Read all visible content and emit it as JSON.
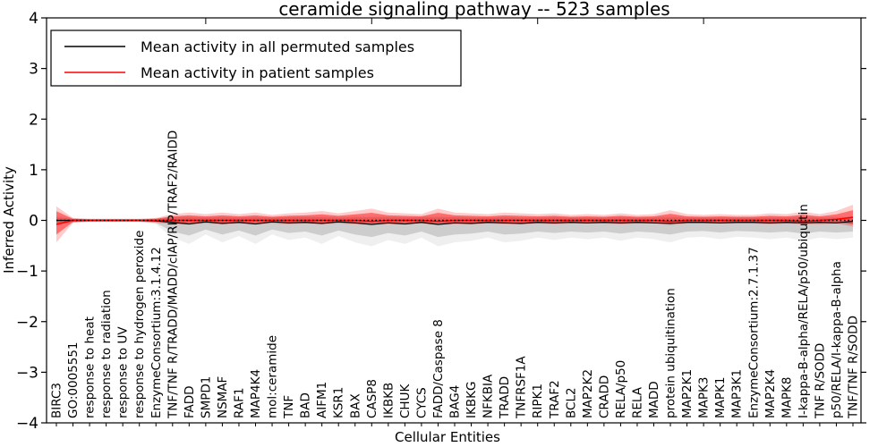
{
  "title": "ceramide signaling pathway -- 523 samples",
  "axes": {
    "ylabel": "Inferred Activity",
    "xlabel": "Cellular Entities"
  },
  "legend": {
    "position": "upper-left",
    "items": [
      {
        "label": "Mean activity in all permuted samples",
        "color": "#000000"
      },
      {
        "label": "Mean activity in patient samples",
        "color": "#ff0000"
      }
    ]
  },
  "chart_data": {
    "type": "line",
    "title": "ceramide signaling pathway -- 523 samples",
    "xlabel": "Cellular Entities",
    "ylabel": "Inferred Activity",
    "ylim": [
      -4,
      4
    ],
    "yticks": [
      4,
      3,
      2,
      1,
      0,
      -1,
      -2,
      -3,
      -4
    ],
    "grid": false,
    "x_tick_label_rotation_deg": 90,
    "categories": [
      "BIRC3",
      "GO:0005551",
      "response to heat",
      "response to radiation",
      "response to UV",
      "response to hydrogen peroxide",
      "EnzymeConsortium:3.1.4.12",
      "TNF/TNF R/TRADD/MADD/cIAP/RIP/TRAF2/RAIDD",
      "FADD",
      "SMPD1",
      "NSMAF",
      "RAF1",
      "MAP4K4",
      "mol:ceramide",
      "TNF",
      "BAD",
      "AIFM1",
      "KSR1",
      "BAX",
      "CASP8",
      "IKBKB",
      "CHUK",
      "CYCS",
      "FADD/Caspase 8",
      "BAG4",
      "IKBKG",
      "NFKBIA",
      "TRADD",
      "TNFRSF1A",
      "RIPK1",
      "TRAF2",
      "BCL2",
      "MAP2K2",
      "CRADD",
      "RELA/p50",
      "RELA",
      "MADD",
      "protein ubiquitination",
      "MAP2K1",
      "MAPK3",
      "MAPK1",
      "MAP3K1",
      "EnzymeConsortium:2.7.1.37",
      "MAP2K4",
      "MAPK8",
      "I-kappa-B-alpha/RELA/p50/ubiquitin",
      "TNF R/SODD",
      "p50/RELA/I-kappa-B-alpha",
      "TNF/TNF R/SODD"
    ],
    "series": [
      {
        "name": "Mean activity in all permuted samples",
        "color": "#000000",
        "style": "solid",
        "values": [
          0,
          0,
          0,
          0,
          0,
          0,
          -0.01,
          -0.04,
          -0.07,
          -0.03,
          -0.06,
          -0.04,
          -0.07,
          -0.03,
          -0.05,
          -0.04,
          -0.06,
          -0.03,
          -0.05,
          -0.08,
          -0.05,
          -0.07,
          -0.04,
          -0.08,
          -0.05,
          -0.06,
          -0.04,
          -0.05,
          -0.06,
          -0.04,
          -0.05,
          -0.04,
          -0.05,
          -0.04,
          -0.05,
          -0.04,
          -0.05,
          -0.06,
          -0.04,
          -0.04,
          -0.05,
          -0.04,
          -0.04,
          -0.05,
          -0.04,
          -0.05,
          -0.04,
          -0.05,
          -0.02
        ]
      },
      {
        "name": "Mean activity in patient samples",
        "color": "#ff0000",
        "style": "solid",
        "values": [
          -0.08,
          0,
          0,
          0,
          0,
          0,
          0,
          0,
          0,
          0,
          0,
          0,
          0,
          0,
          0,
          0,
          0,
          0,
          0,
          -0.02,
          0,
          0,
          0,
          -0.02,
          0,
          0,
          0,
          0,
          0,
          0,
          0,
          0,
          0,
          0,
          0,
          0,
          0,
          -0.02,
          0,
          0,
          0,
          0,
          0,
          0,
          0,
          -0.02,
          0,
          0.02,
          0.06
        ]
      }
    ],
    "reference_line": {
      "y": 0,
      "color": "#000000",
      "style": "dotted"
    },
    "bands": [
      {
        "name": "permuted-samples-range",
        "color": "#000000",
        "opacity": 0.14,
        "upper": [
          0.06,
          0.03,
          0.02,
          0.02,
          0.02,
          0.02,
          0.03,
          0.06,
          0.06,
          0.05,
          0.06,
          0.05,
          0.06,
          0.05,
          0.06,
          0.06,
          0.06,
          0.05,
          0.06,
          0.06,
          0.06,
          0.05,
          0.06,
          0.06,
          0.06,
          0.05,
          0.05,
          0.06,
          0.05,
          0.05,
          0.06,
          0.05,
          0.05,
          0.05,
          0.06,
          0.05,
          0.05,
          0.06,
          0.05,
          0.05,
          0.05,
          0.05,
          0.05,
          0.05,
          0.05,
          0.06,
          0.05,
          0.05,
          0.05
        ],
        "lower": [
          -0.06,
          -0.03,
          -0.02,
          -0.02,
          -0.02,
          -0.02,
          -0.05,
          -0.22,
          -0.3,
          -0.18,
          -0.28,
          -0.2,
          -0.3,
          -0.18,
          -0.25,
          -0.22,
          -0.3,
          -0.2,
          -0.28,
          -0.33,
          -0.25,
          -0.3,
          -0.22,
          -0.33,
          -0.28,
          -0.26,
          -0.22,
          -0.28,
          -0.26,
          -0.22,
          -0.25,
          -0.22,
          -0.24,
          -0.22,
          -0.26,
          -0.22,
          -0.24,
          -0.28,
          -0.22,
          -0.21,
          -0.24,
          -0.21,
          -0.22,
          -0.24,
          -0.22,
          -0.26,
          -0.22,
          -0.24,
          -0.22
        ]
      },
      {
        "name": "patient-samples-range",
        "color": "#ff0000",
        "opacity": 0.45,
        "upper": [
          0.18,
          0.03,
          0.02,
          0.02,
          0.02,
          0.02,
          0.03,
          0.08,
          0.1,
          0.08,
          0.1,
          0.08,
          0.1,
          0.07,
          0.09,
          0.1,
          0.12,
          0.09,
          0.12,
          0.15,
          0.1,
          0.09,
          0.08,
          0.15,
          0.1,
          0.09,
          0.08,
          0.1,
          0.09,
          0.08,
          0.09,
          0.07,
          0.08,
          0.07,
          0.09,
          0.07,
          0.08,
          0.13,
          0.08,
          0.07,
          0.08,
          0.07,
          0.07,
          0.09,
          0.08,
          0.11,
          0.08,
          0.12,
          0.2
        ],
        "lower": [
          -0.28,
          -0.03,
          -0.02,
          -0.02,
          -0.02,
          -0.02,
          -0.03,
          -0.05,
          -0.05,
          -0.04,
          -0.05,
          -0.04,
          -0.05,
          -0.04,
          -0.05,
          -0.04,
          -0.05,
          -0.04,
          -0.05,
          -0.06,
          -0.05,
          -0.05,
          -0.04,
          -0.06,
          -0.05,
          -0.05,
          -0.04,
          -0.05,
          -0.05,
          -0.04,
          -0.05,
          -0.04,
          -0.04,
          -0.04,
          -0.05,
          -0.04,
          -0.04,
          -0.06,
          -0.04,
          -0.04,
          -0.04,
          -0.04,
          -0.04,
          -0.05,
          -0.04,
          -0.05,
          -0.05,
          -0.04,
          -0.08
        ]
      }
    ]
  }
}
